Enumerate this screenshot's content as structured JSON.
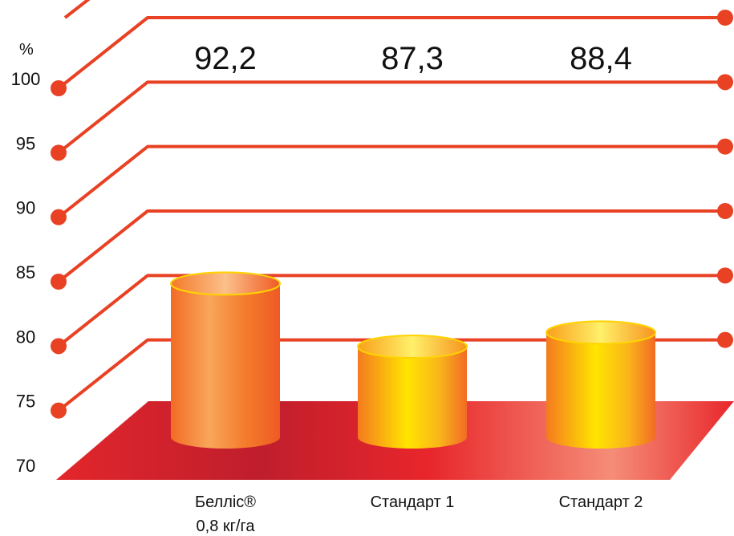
{
  "chart_data": {
    "type": "bar",
    "title": "",
    "xlabel": "",
    "ylabel": "%",
    "ylim": [
      70,
      100
    ],
    "yticks": [
      100,
      95,
      90,
      85,
      80,
      75,
      70
    ],
    "categories": [
      [
        "Белліс®",
        "0,8 кг/га"
      ],
      [
        "Стандарт 1"
      ],
      [
        "Стандарт 2"
      ]
    ],
    "values": [
      92.2,
      87.3,
      88.4
    ],
    "value_labels": [
      "92,2",
      "87,3",
      "88,4"
    ],
    "colors": {
      "grid": "#e84123",
      "floor": "#d9262a",
      "bar_light": "#ffd400",
      "bar_dark": "#f05a28"
    }
  }
}
